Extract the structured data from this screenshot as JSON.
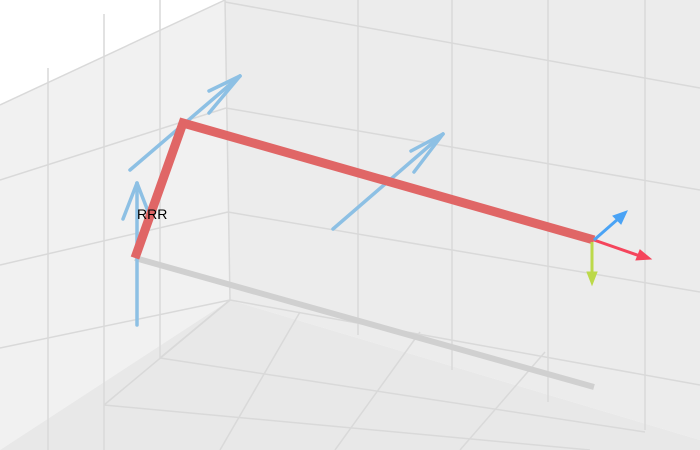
{
  "robot": {
    "label": "RRR"
  },
  "colors": {
    "background": "#ffffff",
    "pane_light": "#f2f2f2",
    "pane_mid": "#ececec",
    "pane_dark": "#e6e6e6",
    "grid": "#d9d9d9",
    "link": "#e06666",
    "shadow": "#cccccc",
    "joint_axis": "#8dc0e4",
    "frame_x": "#f5455c",
    "frame_y": "#bcd94a",
    "frame_z": "#4aa3f5"
  },
  "icons": {
    "joint_axis": "arrow-icon",
    "frame_x": "arrow-icon",
    "frame_y": "arrow-icon",
    "frame_z": "arrow-icon"
  }
}
